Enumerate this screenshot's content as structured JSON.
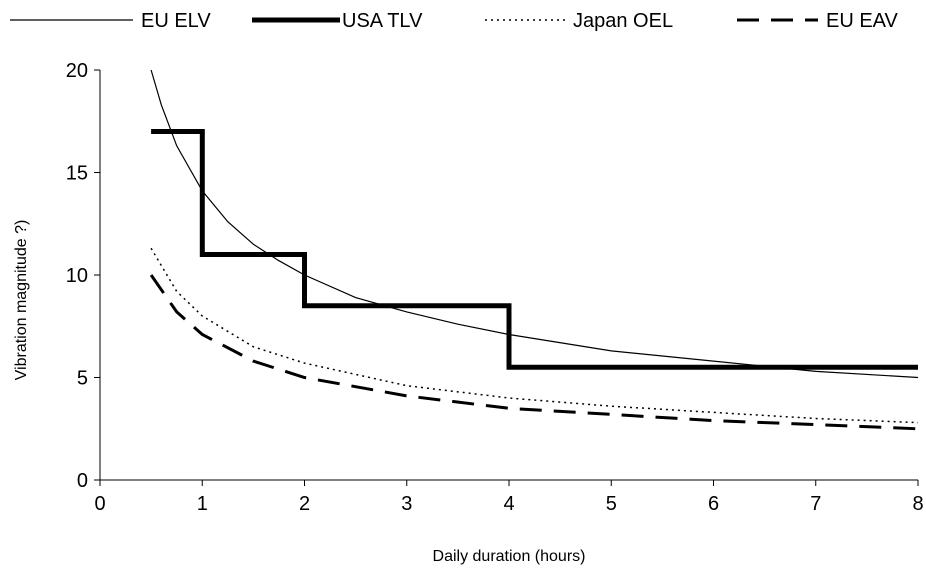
{
  "chart_data": {
    "type": "line",
    "xlabel": "Daily duration (hours)",
    "ylabel": "Vibration magnitude ?)",
    "xlim": [
      0,
      8
    ],
    "ylim": [
      0,
      20
    ],
    "x_ticks": [
      0,
      1,
      2,
      3,
      4,
      5,
      6,
      7,
      8
    ],
    "y_ticks": [
      0,
      5,
      10,
      15,
      20
    ],
    "grid": false,
    "legend_position": "top",
    "series": [
      {
        "name": "EU ELV",
        "style": "thin-solid",
        "color": "#000000",
        "points": [
          [
            0.5,
            20
          ],
          [
            0.6,
            18.3
          ],
          [
            0.75,
            16.3
          ],
          [
            1,
            14.1
          ],
          [
            1.25,
            12.6
          ],
          [
            1.5,
            11.5
          ],
          [
            1.75,
            10.7
          ],
          [
            2,
            10
          ],
          [
            2.5,
            8.9
          ],
          [
            3,
            8.2
          ],
          [
            3.5,
            7.6
          ],
          [
            4,
            7.1
          ],
          [
            5,
            6.3
          ],
          [
            6,
            5.8
          ],
          [
            7,
            5.3
          ],
          [
            8,
            5
          ]
        ]
      },
      {
        "name": "USA TLV",
        "style": "thick-step",
        "color": "#000000",
        "points": [
          [
            0.5,
            17
          ],
          [
            1,
            17
          ],
          [
            1,
            11
          ],
          [
            2,
            11
          ],
          [
            2,
            8.5
          ],
          [
            4,
            8.5
          ],
          [
            4,
            5.5
          ],
          [
            8,
            5.5
          ]
        ]
      },
      {
        "name": "Japan OEL",
        "style": "dotted",
        "color": "#000000",
        "points": [
          [
            0.5,
            11.3
          ],
          [
            0.75,
            9.2
          ],
          [
            1,
            8
          ],
          [
            1.5,
            6.5
          ],
          [
            2,
            5.7
          ],
          [
            3,
            4.6
          ],
          [
            4,
            4
          ],
          [
            5,
            3.6
          ],
          [
            6,
            3.3
          ],
          [
            7,
            3
          ],
          [
            8,
            2.8
          ]
        ]
      },
      {
        "name": "EU EAV",
        "style": "dashed",
        "color": "#000000",
        "points": [
          [
            0.5,
            10
          ],
          [
            0.75,
            8.2
          ],
          [
            1,
            7.1
          ],
          [
            1.5,
            5.8
          ],
          [
            2,
            5
          ],
          [
            3,
            4.1
          ],
          [
            4,
            3.5
          ],
          [
            5,
            3.2
          ],
          [
            6,
            2.9
          ],
          [
            7,
            2.7
          ],
          [
            8,
            2.5
          ]
        ]
      }
    ]
  }
}
